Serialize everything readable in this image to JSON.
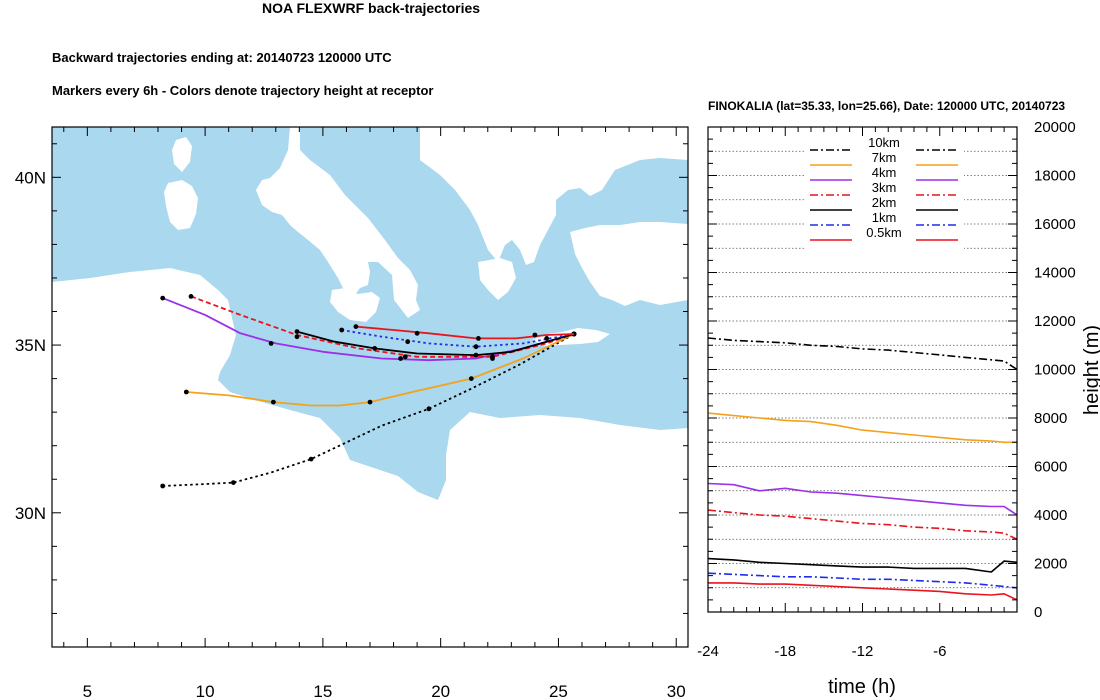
{
  "header": {
    "title": "NOA FLEXWRF back-trajectories",
    "subtitle1": "Backward trajectories ending at: 20140723  120000 UTC",
    "subtitle2": "Markers every 6h - Colors denote trajectory height at receptor",
    "right_title": "FINOKALIA (lat=35.33,  lon=25.66), Date: 120000 UTC, 20140723"
  },
  "colors": {
    "sea": "#a9d8ef",
    "land": "#ffffff",
    "10km": "#000000",
    "7km": "#f4a21c",
    "4km": "#9b30e8",
    "3km": "#e8141e",
    "2km": "#000000",
    "1km": "#1f2ee8",
    "0.5km": "#e8141e"
  },
  "chart_data": [
    {
      "type": "line",
      "subtype": "trajectory-map",
      "xlim": [
        3.5,
        30.5
      ],
      "ylim": [
        26,
        41.5
      ],
      "x_ticks": [
        5,
        10,
        15,
        20,
        25,
        30
      ],
      "x_tick_labels": [
        "5",
        "10",
        "15",
        "20",
        "25",
        "30"
      ],
      "y_ticks": [
        30,
        35,
        40
      ],
      "y_tick_labels": [
        "30N",
        "35N",
        "40N"
      ],
      "receptor": [
        25.66,
        35.33
      ],
      "series": [
        {
          "name": "10km",
          "style": "dotted",
          "color_key": "10km",
          "points": [
            [
              8.2,
              30.8
            ],
            [
              9.8,
              30.85
            ],
            [
              11.2,
              30.9
            ],
            [
              12.8,
              31.2
            ],
            [
              14.5,
              31.6
            ],
            [
              16.0,
              32.1
            ],
            [
              17.5,
              32.6
            ],
            [
              19.5,
              33.1
            ],
            [
              21.3,
              33.7
            ],
            [
              23.3,
              34.4
            ],
            [
              25.66,
              35.33
            ]
          ],
          "markers": [
            [
              8.2,
              30.8
            ],
            [
              11.2,
              30.9
            ],
            [
              14.5,
              31.6
            ],
            [
              19.5,
              33.1
            ],
            [
              25.66,
              35.33
            ]
          ]
        },
        {
          "name": "7km",
          "style": "solid",
          "color_key": "7km",
          "points": [
            [
              9.2,
              33.6
            ],
            [
              11.0,
              33.5
            ],
            [
              12.9,
              33.3
            ],
            [
              14.5,
              33.2
            ],
            [
              15.7,
              33.2
            ],
            [
              17.0,
              33.3
            ],
            [
              18.8,
              33.6
            ],
            [
              21.3,
              34.0
            ],
            [
              23.5,
              34.6
            ],
            [
              25.66,
              35.33
            ]
          ],
          "markers": [
            [
              9.2,
              33.6
            ],
            [
              12.9,
              33.3
            ],
            [
              17.0,
              33.3
            ],
            [
              21.3,
              34.0
            ],
            [
              25.66,
              35.33
            ]
          ]
        },
        {
          "name": "4km",
          "style": "solid",
          "color_key": "4km",
          "points": [
            [
              8.2,
              36.4
            ],
            [
              10.0,
              35.9
            ],
            [
              11.5,
              35.35
            ],
            [
              13.0,
              35.05
            ],
            [
              15.0,
              34.8
            ],
            [
              17.5,
              34.6
            ],
            [
              19.5,
              34.55
            ],
            [
              21.5,
              34.6
            ],
            [
              23.5,
              34.9
            ],
            [
              25.66,
              35.33
            ]
          ],
          "markers": [
            [
              8.2,
              36.4
            ],
            [
              12.8,
              35.05
            ],
            [
              18.3,
              34.6
            ],
            [
              22.2,
              34.6
            ],
            [
              25.66,
              35.33
            ]
          ]
        },
        {
          "name": "3km",
          "style": "dashed",
          "color_key": "3km",
          "points": [
            [
              9.4,
              36.45
            ],
            [
              11.5,
              35.9
            ],
            [
              13.9,
              35.3
            ],
            [
              16.5,
              34.9
            ],
            [
              19.0,
              34.65
            ],
            [
              22.2,
              34.65
            ],
            [
              24.5,
              35.05
            ],
            [
              25.66,
              35.33
            ]
          ],
          "markers": [
            [
              9.4,
              36.45
            ],
            [
              13.9,
              35.25
            ],
            [
              18.5,
              34.65
            ],
            [
              22.2,
              34.65
            ],
            [
              25.66,
              35.33
            ]
          ]
        },
        {
          "name": "2km",
          "style": "solid",
          "color_key": "2km",
          "points": [
            [
              13.9,
              35.4
            ],
            [
              15.5,
              35.1
            ],
            [
              17.2,
              34.9
            ],
            [
              19.0,
              34.75
            ],
            [
              21.5,
              34.7
            ],
            [
              23.0,
              34.8
            ],
            [
              24.5,
              35.1
            ],
            [
              25.66,
              35.33
            ]
          ],
          "markers": [
            [
              13.9,
              35.4
            ],
            [
              17.2,
              34.9
            ],
            [
              21.5,
              34.7
            ],
            [
              25.66,
              35.33
            ]
          ]
        },
        {
          "name": "1km",
          "style": "dotted",
          "color_key": "1km",
          "points": [
            [
              15.8,
              35.45
            ],
            [
              17.5,
              35.25
            ],
            [
              19.5,
              35.05
            ],
            [
              21.5,
              34.95
            ],
            [
              23.5,
              35.05
            ],
            [
              25.66,
              35.33
            ]
          ],
          "markers": [
            [
              15.8,
              35.45
            ],
            [
              18.6,
              35.1
            ],
            [
              21.5,
              34.95
            ],
            [
              24.5,
              35.2
            ]
          ]
        },
        {
          "name": "0.5km",
          "style": "solid",
          "color_key": "0.5km",
          "points": [
            [
              16.4,
              35.55
            ],
            [
              18.0,
              35.45
            ],
            [
              19.5,
              35.35
            ],
            [
              21.5,
              35.2
            ],
            [
              23.2,
              35.2
            ],
            [
              24.5,
              35.3
            ],
            [
              25.66,
              35.33
            ]
          ],
          "markers": [
            [
              16.4,
              35.55
            ],
            [
              19.0,
              35.35
            ],
            [
              21.6,
              35.2
            ],
            [
              24.0,
              35.3
            ]
          ]
        }
      ]
    },
    {
      "type": "line",
      "subtype": "height-profile",
      "xlabel": "time (h)",
      "ylabel": "height (m)",
      "xlim": [
        -24,
        0
      ],
      "ylim": [
        0,
        20000
      ],
      "x_ticks": [
        -24,
        -18,
        -12,
        -6
      ],
      "x_tick_labels": [
        "-24",
        "-18",
        "-12",
        "-6"
      ],
      "y_ticks": [
        0,
        2000,
        4000,
        6000,
        8000,
        10000,
        12000,
        14000,
        16000,
        18000,
        20000
      ],
      "y_tick_labels": [
        "0",
        "2000",
        "4000",
        "6000",
        "8000",
        "10000",
        "12000",
        "14000",
        "16000",
        "18000",
        "20000"
      ],
      "grid": true,
      "legend_placement": "top-center",
      "x": [
        -24,
        -22,
        -20,
        -18,
        -16,
        -14,
        -12,
        -10,
        -8,
        -6,
        -4,
        -2,
        -1,
        0
      ],
      "series": [
        {
          "name": "10km",
          "style": "dashdot",
          "color_key": "10km",
          "values": [
            11300,
            11200,
            11150,
            11100,
            11000,
            10950,
            10850,
            10800,
            10700,
            10600,
            10500,
            10400,
            10350,
            10000
          ]
        },
        {
          "name": "7km",
          "style": "solid",
          "color_key": "7km",
          "values": [
            8200,
            8100,
            8000,
            7900,
            7850,
            7700,
            7500,
            7400,
            7300,
            7200,
            7100,
            7050,
            7000,
            7000
          ]
        },
        {
          "name": "4km",
          "style": "solid",
          "color_key": "4km",
          "values": [
            5300,
            5250,
            5000,
            5100,
            4950,
            4900,
            4800,
            4700,
            4600,
            4500,
            4400,
            4350,
            4350,
            4000
          ]
        },
        {
          "name": "3km",
          "style": "dashdot",
          "color_key": "3km",
          "values": [
            4200,
            4100,
            4000,
            3950,
            3850,
            3750,
            3650,
            3600,
            3500,
            3450,
            3350,
            3300,
            3250,
            3000
          ]
        },
        {
          "name": "2km",
          "style": "solid",
          "color_key": "2km",
          "values": [
            2200,
            2150,
            2050,
            2000,
            1950,
            1900,
            1850,
            1850,
            1800,
            1800,
            1800,
            1650,
            2100,
            2050
          ]
        },
        {
          "name": "1km",
          "style": "dashdot",
          "color_key": "1km",
          "values": [
            1600,
            1550,
            1500,
            1450,
            1450,
            1400,
            1350,
            1350,
            1300,
            1250,
            1200,
            1100,
            1050,
            1000
          ]
        },
        {
          "name": "0.5km",
          "style": "solid",
          "color_key": "0.5km",
          "values": [
            1200,
            1200,
            1150,
            1150,
            1100,
            1050,
            1000,
            950,
            900,
            850,
            750,
            700,
            750,
            500
          ]
        }
      ]
    }
  ]
}
